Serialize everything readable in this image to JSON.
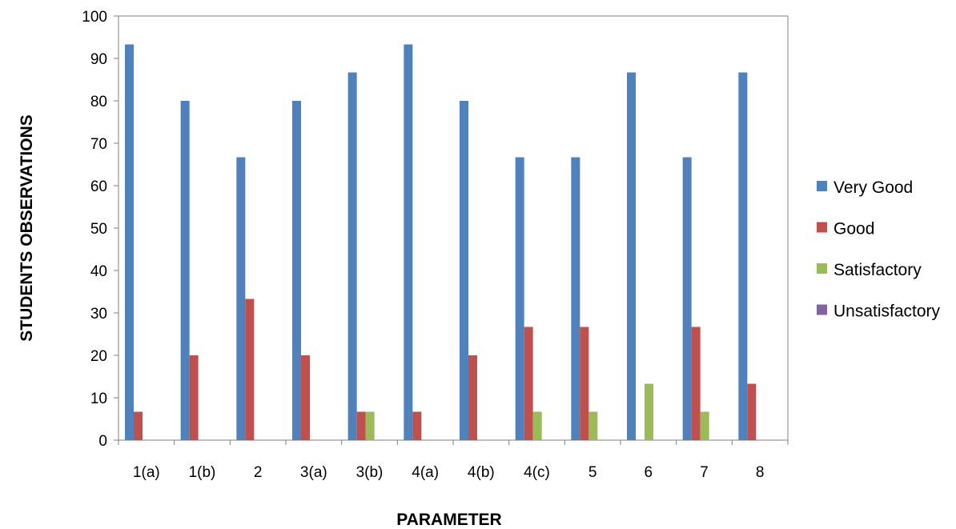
{
  "chart_data": {
    "type": "bar",
    "title": "",
    "xlabel": "PARAMETER",
    "ylabel": "STUDENTS OBSERVATIONS",
    "ylim": [
      0,
      100
    ],
    "yticks": [
      0,
      10,
      20,
      30,
      40,
      50,
      60,
      70,
      80,
      90,
      100
    ],
    "grid": false,
    "legend_position": "right",
    "categories": [
      "1(a)",
      "1(b)",
      "2",
      "3(a)",
      "3(b)",
      "4(a)",
      "4(b)",
      "4(c)",
      "5",
      "6",
      "7",
      "8"
    ],
    "series": [
      {
        "name": "Very Good",
        "color": "#4F81BD",
        "values": [
          93.3,
          80,
          66.7,
          80,
          86.7,
          93.3,
          80,
          66.7,
          66.7,
          86.7,
          66.7,
          86.7
        ]
      },
      {
        "name": "Good",
        "color": "#C0504D",
        "values": [
          6.7,
          20,
          33.3,
          20,
          6.7,
          6.7,
          20,
          26.7,
          26.7,
          0,
          26.7,
          13.3
        ]
      },
      {
        "name": "Satisfactory",
        "color": "#9BBB59",
        "values": [
          0,
          0,
          0,
          0,
          6.7,
          0,
          0,
          6.7,
          6.7,
          13.3,
          6.7,
          0
        ]
      },
      {
        "name": "Unsatisfactory",
        "color": "#8064A2",
        "values": [
          0,
          0,
          0,
          0,
          0,
          0,
          0,
          0,
          0,
          0,
          0,
          0
        ]
      }
    ]
  }
}
